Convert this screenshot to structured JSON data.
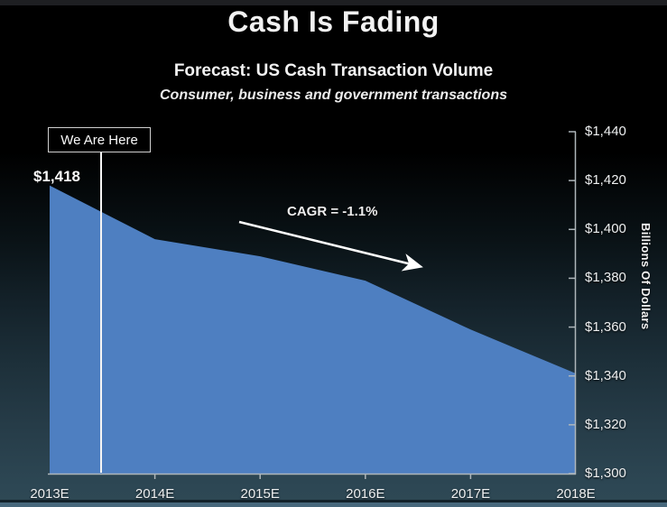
{
  "slide": {
    "title": "Cash Is Fading",
    "heading": "Forecast: US Cash Transaction Volume",
    "subheading": "Consumer, business and government transactions"
  },
  "annotations": {
    "we_are_here": "We Are Here",
    "start_value_label": "$1,418",
    "cagr": "CAGR = -1.1%"
  },
  "chart_data": {
    "type": "area",
    "title": "Forecast: US Cash Transaction Volume",
    "subtitle": "Consumer, business and government transactions",
    "categories": [
      "2013E",
      "2014E",
      "2015E",
      "2016E",
      "2017E",
      "2018E"
    ],
    "series": [
      {
        "name": "US cash transaction volume",
        "values": [
          1418,
          1396,
          1389,
          1379,
          1359,
          1341
        ]
      }
    ],
    "xlabel": "",
    "ylabel": "Billions Of Dollars",
    "ylim": [
      1300,
      1440
    ],
    "yticks": [
      1300,
      1320,
      1340,
      1360,
      1380,
      1400,
      1420,
      1440
    ],
    "ytick_labels": [
      "$1,300",
      "$1,320",
      "$1,340",
      "$1,360",
      "$1,380",
      "$1,400",
      "$1,420",
      "$1,440"
    ],
    "yaxis_side": "right",
    "grid": false,
    "legend": "none",
    "annotations": {
      "cagr_text": "CAGR = -1.1%",
      "we_are_here_text": "We Are Here",
      "first_point_label": "$1,418"
    }
  },
  "colors": {
    "area": "#4e7fc1",
    "axis": "#aeb6ba",
    "marker_line": "#f5f5f5",
    "arrow": "#ffffff",
    "text": "#f2f2f2",
    "background_top": "#000000",
    "background_bottom": "#2e4854",
    "bottom_bar": "#47687c"
  }
}
